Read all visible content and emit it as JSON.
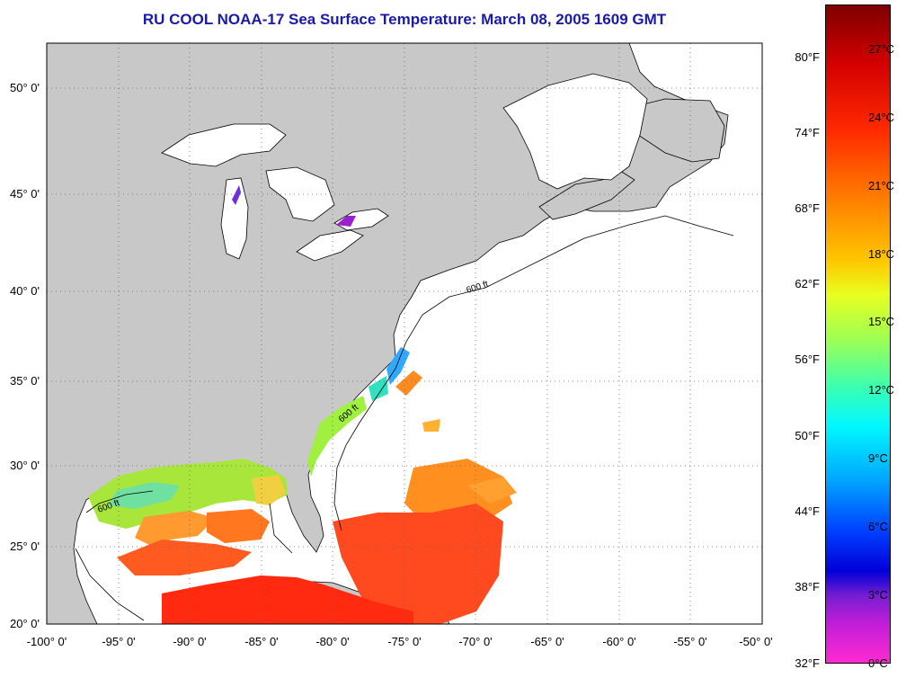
{
  "title": "RU COOL  NOAA-17  Sea Surface Temperature:  March 08, 2005 1609 GMT",
  "map": {
    "lat_labels": [
      "50° 0'",
      "45° 0'",
      "40° 0'",
      "35° 0'",
      "30° 0'",
      "25° 0'",
      "20° 0'"
    ],
    "lon_labels": [
      "-100° 0'",
      "-95° 0'",
      "-90° 0'",
      "-85° 0'",
      "-80° 0'",
      "-75° 0'",
      "-70° 0'",
      "-65° 0'",
      "-60° 0'",
      "-55° 0'",
      "-50° 0'"
    ],
    "isobath_label": "600 ft",
    "colors": {
      "land": "#c8c8c8",
      "ocean_no_data": "#ffffff",
      "grid": "#777777",
      "title": "#1a1aa8"
    }
  },
  "colorbar": {
    "fahrenheit_labels": [
      "80°F",
      "74°F",
      "68°F",
      "62°F",
      "56°F",
      "50°F",
      "44°F",
      "38°F",
      "32°F"
    ],
    "celsius_labels": [
      "27°C",
      "24°C",
      "21°C",
      "18°C",
      "15°C",
      "12°C",
      "9°C",
      "6°C",
      "3°C",
      "0°C"
    ],
    "range_celsius": [
      0,
      29
    ]
  }
}
